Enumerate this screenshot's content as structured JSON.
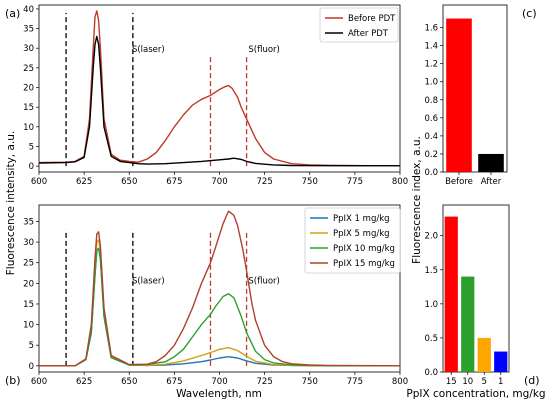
{
  "figure": {
    "shared_xlabel": "Wavelength, nm",
    "shared_ylabel": "Fluorescence intensity, a.u.",
    "right_ylabel": "Fluorescence index, a.u.",
    "right_bottom_xlabel": "PpIX concentration, mg/kg"
  },
  "colors": {
    "before_pdt": "#c0392b",
    "after_pdt": "#000000",
    "ppix_1": "#1f77b4",
    "ppix_5": "#d4a017",
    "ppix_10": "#2ca02c",
    "ppix_15": "#b0412f"
  },
  "chart_data": [
    {
      "panel": "(a)",
      "type": "line",
      "xlabel": "",
      "ylabel": "",
      "xlim": [
        600,
        800
      ],
      "ylim": [
        -1.5,
        41
      ],
      "xticks": [
        600,
        625,
        650,
        675,
        700,
        725,
        750,
        775,
        800
      ],
      "yticks": [
        0,
        5,
        10,
        15,
        20,
        25,
        30,
        35,
        40
      ],
      "legend": "top-right",
      "annotations": [
        {
          "text": "S(laser)",
          "x": 651.5,
          "y": 29
        },
        {
          "text": "S(fluor)",
          "x": 716,
          "y": 29
        }
      ],
      "vlines": [
        {
          "x": 615,
          "style": "black-dashed",
          "ymax": 39
        },
        {
          "x": 652,
          "style": "black-dashed",
          "ymax": 39
        },
        {
          "x": 695,
          "style": "red-dashed",
          "ymax": 28
        },
        {
          "x": 715,
          "style": "red-dashed",
          "ymax": 28
        }
      ],
      "series": [
        {
          "name": "Before PDT",
          "color": "#c0392b",
          "x": [
            600,
            615,
            620,
            625,
            628,
            630,
            631,
            632,
            633,
            634,
            636,
            640,
            645,
            650,
            655,
            660,
            665,
            670,
            675,
            680,
            685,
            690,
            695,
            700,
            703,
            705,
            707,
            710,
            712,
            715,
            720,
            725,
            730,
            740,
            750,
            760,
            770,
            780,
            790,
            800
          ],
          "y": [
            0.9,
            1.0,
            1.2,
            2.5,
            12,
            30,
            38,
            39.5,
            37,
            30,
            12,
            3,
            1.5,
            1.2,
            1.0,
            1.8,
            3.5,
            6.5,
            10,
            13,
            15.5,
            17,
            18,
            19.5,
            20.2,
            20.5,
            19.8,
            17.5,
            15,
            12,
            7,
            3.5,
            1.8,
            0.6,
            0.3,
            0.2,
            0.15,
            0.1,
            0.1,
            0.1
          ]
        },
        {
          "name": "After PDT",
          "color": "#000000",
          "x": [
            600,
            615,
            620,
            625,
            628,
            630,
            631,
            632,
            633,
            634,
            636,
            640,
            645,
            650,
            655,
            660,
            670,
            680,
            690,
            700,
            705,
            708,
            712,
            715,
            720,
            730,
            740,
            760,
            780,
            800
          ],
          "y": [
            0.8,
            0.9,
            1.1,
            2.2,
            10,
            25,
            31,
            33,
            31,
            25,
            10,
            2.5,
            1.2,
            0.9,
            0.6,
            0.5,
            0.6,
            0.9,
            1.2,
            1.6,
            1.8,
            2.0,
            1.7,
            1.2,
            0.7,
            0.3,
            0.15,
            0.1,
            0.1,
            0.1
          ]
        }
      ]
    },
    {
      "panel": "(b)",
      "type": "line",
      "xlabel": "Wavelength, nm",
      "ylabel": "",
      "xlim": [
        600,
        800
      ],
      "ylim": [
        -1.5,
        39
      ],
      "xticks": [
        600,
        625,
        650,
        675,
        700,
        725,
        750,
        775,
        800
      ],
      "yticks": [
        0,
        5,
        10,
        15,
        20,
        25,
        30,
        35
      ],
      "legend": "top-right",
      "annotations": [
        {
          "text": "S(laser)",
          "x": 651.5,
          "y": 20
        },
        {
          "text": "S(fluor)",
          "x": 716,
          "y": 20
        }
      ],
      "vlines": [
        {
          "x": 615,
          "style": "black-dashed",
          "ymax": 33
        },
        {
          "x": 652,
          "style": "black-dashed",
          "ymax": 33
        },
        {
          "x": 695,
          "style": "red-dashed",
          "ymax": 33
        },
        {
          "x": 715,
          "style": "red-dashed",
          "ymax": 33
        }
      ],
      "series": [
        {
          "name": "PpIX 1 mg/kg",
          "color": "#1f77b4",
          "x": [
            600,
            620,
            626,
            629,
            631,
            632,
            633,
            634,
            636,
            640,
            650,
            660,
            670,
            680,
            690,
            695,
            700,
            705,
            710,
            715,
            720,
            730,
            740,
            760,
            800
          ],
          "y": [
            0,
            0,
            1.5,
            8,
            22,
            28,
            28.5,
            26,
            12,
            2,
            0.2,
            0.1,
            0.2,
            0.5,
            1.0,
            1.4,
            1.9,
            2.2,
            1.9,
            1.2,
            0.6,
            0.2,
            0.1,
            0,
            0
          ]
        },
        {
          "name": "PpIX 5 mg/kg",
          "color": "#d4a017",
          "x": [
            600,
            620,
            626,
            629,
            631,
            632,
            633,
            634,
            636,
            640,
            650,
            660,
            670,
            680,
            690,
            695,
            700,
            705,
            710,
            715,
            720,
            730,
            740,
            760,
            800
          ],
          "y": [
            0,
            0,
            1.6,
            9,
            24,
            30,
            30.5,
            28,
            13,
            2.2,
            0.2,
            0.1,
            0.4,
            1.2,
            2.5,
            3.2,
            4.0,
            4.4,
            3.7,
            2.3,
            1.1,
            0.3,
            0.1,
            0,
            0
          ]
        },
        {
          "name": "PpIX 10 mg/kg",
          "color": "#2ca02c",
          "x": [
            600,
            620,
            626,
            629,
            631,
            632,
            633,
            634,
            636,
            640,
            650,
            660,
            670,
            675,
            680,
            685,
            690,
            695,
            698,
            702,
            705,
            708,
            712,
            715,
            720,
            725,
            730,
            740,
            760,
            800
          ],
          "y": [
            0,
            0,
            1.5,
            8,
            22,
            28,
            28.5,
            26,
            12,
            2,
            0.2,
            0.3,
            1.0,
            2.2,
            4.0,
            7.0,
            10,
            12.5,
            14.5,
            16.8,
            17.5,
            16.5,
            12,
            8,
            3.5,
            1.5,
            0.7,
            0.2,
            0,
            0
          ]
        },
        {
          "name": "PpIX 15 mg/kg",
          "color": "#b0412f",
          "x": [
            600,
            620,
            626,
            629,
            631,
            632,
            633,
            634,
            636,
            640,
            650,
            660,
            665,
            670,
            675,
            680,
            685,
            690,
            695,
            698,
            702,
            705,
            708,
            710,
            713,
            715,
            718,
            720,
            725,
            730,
            735,
            740,
            750,
            760,
            800
          ],
          "y": [
            0,
            0,
            1.7,
            10,
            26,
            32,
            32.5,
            29,
            14,
            2.5,
            0.3,
            0.4,
            1.0,
            2.5,
            5.0,
            9.0,
            14,
            20,
            25,
            29,
            34.5,
            37.5,
            36.5,
            34,
            28,
            23,
            15,
            11,
            5,
            2.2,
            1.0,
            0.5,
            0.2,
            0.1,
            0
          ]
        }
      ]
    },
    {
      "panel": "(c)",
      "type": "bar",
      "categories": [
        "Before",
        "After"
      ],
      "values": [
        1.7,
        0.2
      ],
      "bar_colors": [
        "#ff0000",
        "#000000"
      ],
      "ylim": [
        0,
        1.85
      ],
      "yticks": [
        0.0,
        0.2,
        0.4,
        0.6,
        0.8,
        1.0,
        1.2,
        1.4,
        1.6
      ]
    },
    {
      "panel": "(d)",
      "type": "bar",
      "categories": [
        "15",
        "10",
        "5",
        "1"
      ],
      "values": [
        2.28,
        1.4,
        0.5,
        0.3
      ],
      "bar_colors": [
        "#ff0000",
        "#2ca02c",
        "#ffa500",
        "#0000ff"
      ],
      "ylim": [
        0,
        2.45
      ],
      "yticks": [
        0.0,
        0.5,
        1.0,
        1.5,
        2.0
      ],
      "xlabel": "PpIX concentration, mg/kg"
    }
  ]
}
